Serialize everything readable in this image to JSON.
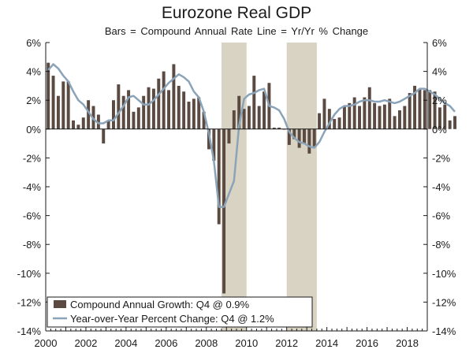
{
  "chart_data": {
    "type": "bar",
    "title": "Eurozone Real GDP",
    "subtitle": "Bars = Compound Annual Rate     Line = Yr/Yr % Change",
    "x_tick_labels": [
      "2000",
      "2002",
      "2004",
      "2006",
      "2008",
      "2010",
      "2012",
      "2014",
      "2016",
      "2018"
    ],
    "x_tick_values": [
      2000,
      2002,
      2004,
      2006,
      2008,
      2010,
      2012,
      2014,
      2016,
      2018
    ],
    "xlim": [
      2000,
      2019
    ],
    "ylim": [
      -14,
      6
    ],
    "y_tick_values": [
      6,
      4,
      2,
      0,
      -2,
      -4,
      -6,
      -8,
      -10,
      -12,
      -14
    ],
    "y_tick_labels": [
      "6%",
      "4%",
      "2%",
      "0%",
      "-2%",
      "-4%",
      "-6%",
      "-8%",
      "-10%",
      "-12%",
      "-14%"
    ],
    "recession_shading": [
      {
        "start": 2008.75,
        "end": 2010.0
      },
      {
        "start": 2012.0,
        "end": 2013.5
      }
    ],
    "quarter_start": 2000.0,
    "series": [
      {
        "name": "Compound Annual Growth: Q4 @ 0.9%",
        "type": "bar",
        "color": "#5a4a42",
        "values": [
          4.6,
          3.7,
          2.3,
          3.3,
          3.3,
          0.6,
          0.3,
          0.8,
          2.0,
          1.6,
          1.0,
          -1.0,
          0.6,
          2.0,
          3.1,
          2.3,
          2.7,
          1.2,
          1.5,
          2.3,
          2.9,
          2.8,
          3.5,
          4.0,
          2.7,
          4.5,
          3.0,
          2.6,
          1.9,
          2.1,
          2.2,
          1.2,
          -1.4,
          -2.2,
          -6.6,
          -11.4,
          -1.0,
          1.3,
          2.3,
          1.4,
          1.6,
          3.7,
          1.6,
          2.6,
          3.2,
          0.1,
          0.1,
          0.0,
          -1.1,
          -0.7,
          -1.3,
          -1.0,
          -1.7,
          -1.2,
          1.1,
          2.1,
          1.4,
          0.7,
          0.8,
          1.6,
          1.8,
          2.2,
          1.6,
          2.2,
          2.9,
          1.8,
          1.6,
          1.7,
          2.1,
          0.9,
          1.3,
          1.6,
          2.5,
          3.0,
          2.8,
          2.7,
          2.7,
          2.6,
          1.5,
          1.7,
          0.6,
          0.9
        ]
      },
      {
        "name": "Year-over-Year Percent Change: Q4 @ 1.2%",
        "type": "line",
        "color": "#8ba3b8",
        "values": [
          4.1,
          4.5,
          4.2,
          3.7,
          3.3,
          2.6,
          2.0,
          1.7,
          1.2,
          0.7,
          0.4,
          0.4,
          0.6,
          0.6,
          1.1,
          1.6,
          2.2,
          2.3,
          2.0,
          1.7,
          1.7,
          2.0,
          2.4,
          2.8,
          3.2,
          3.5,
          3.8,
          3.6,
          3.3,
          2.6,
          2.2,
          1.2,
          -0.3,
          -2.2,
          -5.4,
          -5.4,
          -4.5,
          -3.6,
          0.2,
          2.1,
          2.4,
          2.5,
          2.7,
          2.8,
          1.6,
          1.5,
          1.3,
          0.7,
          -0.2,
          -0.6,
          -0.9,
          -1.0,
          -1.2,
          -1.3,
          -0.9,
          -0.2,
          0.4,
          1.0,
          1.4,
          1.6,
          1.6,
          1.7,
          1.9,
          2.0,
          2.0,
          1.9,
          1.9,
          2.0,
          1.9,
          1.8,
          1.9,
          2.1,
          2.3,
          2.5,
          2.8,
          2.8,
          2.6,
          2.4,
          2.1,
          1.8,
          1.6,
          1.2
        ]
      }
    ],
    "legend_position": "bottom-left",
    "grid": false
  }
}
